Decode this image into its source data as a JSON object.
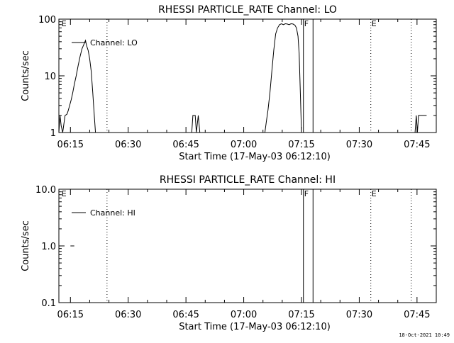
{
  "footer_timestamp": "18-Oct-2021 10:49",
  "chart_data": [
    {
      "type": "line",
      "title": "RHESSI PARTICLE_RATE Channel: LO",
      "xlabel": "Start Time (17-May-03 06:12:10)",
      "ylabel": "Counts/sec",
      "y_scale": "log",
      "ylim": [
        1,
        100
      ],
      "y_ticks": [
        {
          "value": 1,
          "label": "1"
        },
        {
          "value": 10,
          "label": "10"
        },
        {
          "value": 100,
          "label": "100"
        }
      ],
      "xlim_minutes": [
        0,
        98
      ],
      "x_ticks": [
        {
          "minute": 3,
          "label": "06:15"
        },
        {
          "minute": 18,
          "label": "06:30"
        },
        {
          "minute": 33,
          "label": "06:45"
        },
        {
          "minute": 48,
          "label": "07:00"
        },
        {
          "minute": 63,
          "label": "07:15"
        },
        {
          "minute": 78,
          "label": "07:30"
        },
        {
          "minute": 93,
          "label": "07:45"
        }
      ],
      "legend": {
        "label": "Channel: LO",
        "position": "top-left"
      },
      "markers": [
        {
          "minute": 0.5,
          "label": "E",
          "style": "none"
        },
        {
          "minute": 12.5,
          "label": "",
          "style": "dotted"
        },
        {
          "minute": 63.5,
          "label": "F",
          "style": "solid"
        },
        {
          "minute": 66,
          "label": "",
          "style": "solid"
        },
        {
          "minute": 81,
          "label": "E",
          "style": "dotted"
        },
        {
          "minute": 91.5,
          "label": "",
          "style": "dotted"
        }
      ],
      "series": [
        {
          "name": "Channel: LO",
          "segments": [
            [
              [
                0,
                1
              ],
              [
                0.3,
                2
              ],
              [
                0.6,
                1.3
              ],
              [
                1,
                1
              ],
              [
                1.6,
                2
              ],
              [
                2.1,
                2.1
              ],
              [
                2.4,
                2.4
              ],
              [
                2.8,
                3
              ],
              [
                3.2,
                3.8
              ],
              [
                3.6,
                5
              ],
              [
                4.0,
                7
              ],
              [
                4.5,
                10
              ],
              [
                5.0,
                15
              ],
              [
                5.5,
                22
              ],
              [
                6.0,
                30
              ],
              [
                6.5,
                36
              ],
              [
                6.9,
                42
              ],
              [
                7.2,
                34
              ],
              [
                7.6,
                28
              ],
              [
                8.0,
                20
              ],
              [
                8.4,
                12
              ],
              [
                8.8,
                5
              ],
              [
                9.2,
                2
              ],
              [
                9.5,
                1
              ]
            ],
            [
              [
                34.5,
                1
              ],
              [
                34.8,
                2
              ],
              [
                35.4,
                2
              ],
              [
                35.7,
                1
              ],
              [
                36.2,
                2
              ],
              [
                36.6,
                1
              ]
            ],
            [
              [
                53.5,
                1
              ],
              [
                53.9,
                1.6
              ],
              [
                54.3,
                2.5
              ],
              [
                54.8,
                5
              ],
              [
                55.3,
                12
              ],
              [
                55.8,
                28
              ],
              [
                56.3,
                55
              ],
              [
                56.8,
                70
              ],
              [
                57.3,
                80
              ],
              [
                57.8,
                83
              ],
              [
                58.3,
                80
              ],
              [
                58.8,
                83
              ],
              [
                59.3,
                82
              ],
              [
                59.8,
                80
              ],
              [
                60.3,
                83
              ],
              [
                60.8,
                82
              ],
              [
                61.3,
                78
              ],
              [
                61.7,
                70
              ],
              [
                62.1,
                50
              ],
              [
                62.4,
                25
              ],
              [
                62.7,
                5
              ],
              [
                63.0,
                1
              ]
            ],
            [
              [
                92.5,
                1
              ],
              [
                92.8,
                2
              ],
              [
                93.1,
                1
              ],
              [
                93.4,
                2
              ],
              [
                95.5,
                2
              ]
            ]
          ]
        }
      ]
    },
    {
      "type": "line",
      "title": "RHESSI PARTICLE_RATE Channel: HI",
      "xlabel": "Start Time (17-May-03 06:12:10)",
      "ylabel": "Counts/sec",
      "y_scale": "log",
      "ylim": [
        0.1,
        10
      ],
      "y_ticks": [
        {
          "value": 0.1,
          "label": "0.1"
        },
        {
          "value": 1,
          "label": "1.0"
        },
        {
          "value": 10,
          "label": "10.0"
        }
      ],
      "xlim_minutes": [
        0,
        98
      ],
      "x_ticks": [
        {
          "minute": 3,
          "label": "06:15"
        },
        {
          "minute": 18,
          "label": "06:30"
        },
        {
          "minute": 33,
          "label": "06:45"
        },
        {
          "minute": 48,
          "label": "07:00"
        },
        {
          "minute": 63,
          "label": "07:15"
        },
        {
          "minute": 78,
          "label": "07:30"
        },
        {
          "minute": 93,
          "label": "07:45"
        }
      ],
      "legend": {
        "label": "Channel: HI",
        "position": "top-left"
      },
      "markers": [
        {
          "minute": 0.5,
          "label": "E",
          "style": "none"
        },
        {
          "minute": 12.5,
          "label": "",
          "style": "dotted"
        },
        {
          "minute": 63.5,
          "label": "F",
          "style": "solid"
        },
        {
          "minute": 66,
          "label": "",
          "style": "solid"
        },
        {
          "minute": 81,
          "label": "E",
          "style": "dotted"
        },
        {
          "minute": 91.5,
          "label": "",
          "style": "dotted"
        }
      ],
      "series": [
        {
          "name": "Channel: HI",
          "segments": [
            [
              [
                3,
                1
              ],
              [
                4,
                1
              ]
            ]
          ]
        }
      ]
    }
  ]
}
